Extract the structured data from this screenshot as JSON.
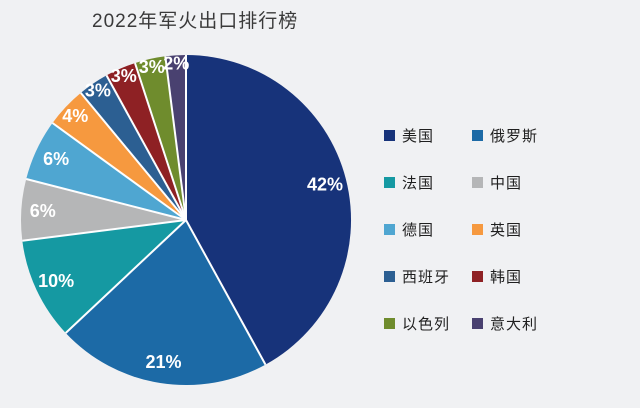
{
  "page": {
    "background_color": "#f0f1f3"
  },
  "chart_data": {
    "type": "pie",
    "title": "2022年军火出口排行榜",
    "unit": "%",
    "start_angle_deg": 0,
    "direction": "clockwise",
    "legend_position": "right",
    "legend_columns": 2,
    "categories": [
      "美国",
      "俄罗斯",
      "法国",
      "中国",
      "德国",
      "英国",
      "西班牙",
      "韩国",
      "以色列",
      "意大利"
    ],
    "values": [
      42,
      21,
      10,
      6,
      6,
      4,
      3,
      3,
      3,
      2
    ],
    "slice_labels": [
      "42%",
      "21%",
      "10%",
      "6%",
      "6%",
      "4%",
      "3%",
      "3%",
      "3%",
      "2%"
    ],
    "colors": [
      "#17337a",
      "#1c6aa6",
      "#1599a2",
      "#b5b6b7",
      "#4fa6d1",
      "#f6993f",
      "#2c5f92",
      "#8e2124",
      "#6f8c2d",
      "#494170"
    ],
    "separator_color": "#fdfeff",
    "label_text_color": "#ffffff"
  }
}
